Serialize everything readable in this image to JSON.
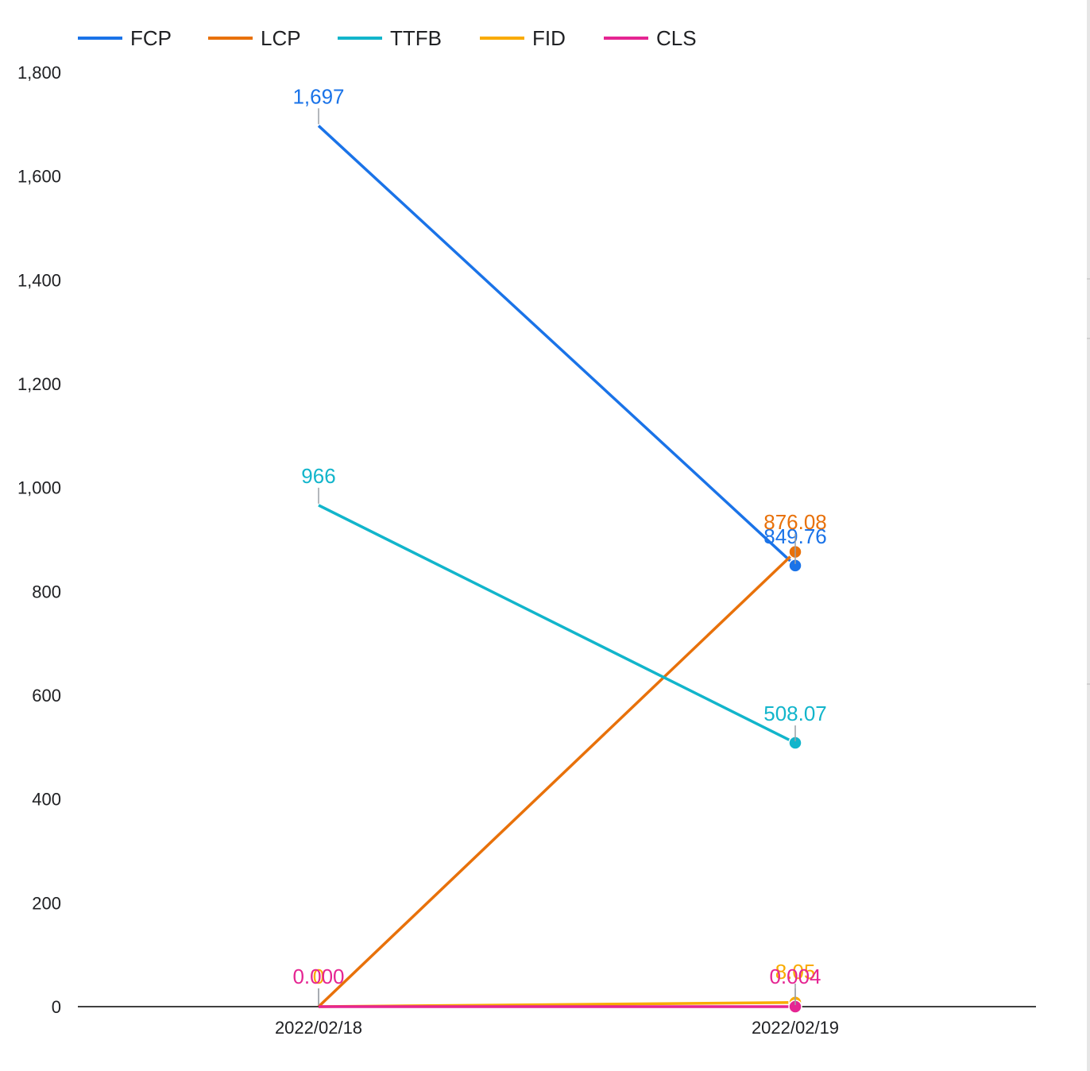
{
  "chart_data": {
    "type": "line",
    "categories": [
      "2022/02/18",
      "2022/02/19"
    ],
    "ylim": [
      0,
      1800
    ],
    "y_ticks": [
      0,
      200,
      400,
      600,
      800,
      1000,
      1200,
      1400,
      1600,
      1800
    ],
    "y_tick_labels": [
      "0",
      "200",
      "400",
      "600",
      "800",
      "1,000",
      "1,200",
      "1,400",
      "1,600",
      "1,800"
    ],
    "legend_position": "top-left",
    "grid": false,
    "series": [
      {
        "name": "FCP",
        "color": "#1a73e8",
        "values": [
          1697,
          849.76
        ],
        "labels": [
          "1,697",
          "849.76"
        ]
      },
      {
        "name": "LCP",
        "color": "#e8710a",
        "values": [
          0,
          876.08
        ],
        "labels": [
          "",
          "876.08"
        ]
      },
      {
        "name": "TTFB",
        "color": "#12b5cb",
        "values": [
          966,
          508.07
        ],
        "labels": [
          "966",
          "508.07"
        ]
      },
      {
        "name": "FID",
        "color": "#f9ab00",
        "values": [
          0,
          8.05
        ],
        "labels": [
          "0",
          "8.05"
        ]
      },
      {
        "name": "CLS",
        "color": "#e52592",
        "values": [
          0,
          0.004
        ],
        "labels": [
          "0.000",
          "0.004"
        ]
      }
    ]
  }
}
